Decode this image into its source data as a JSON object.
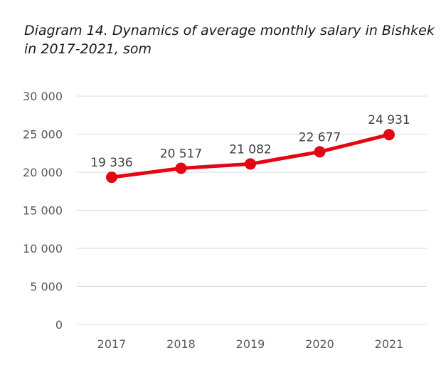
{
  "chart_data": {
    "type": "line",
    "title_line1": "Diagram 14. Dynamics of average monthly salary in Bishkek",
    "title_line2": "in 2017-2021, som",
    "categories": [
      "2017",
      "2018",
      "2019",
      "2020",
      "2021"
    ],
    "values": [
      19336,
      20517,
      21082,
      22677,
      24931
    ],
    "data_labels": [
      "19 336",
      "20 517",
      "21 082",
      "22 677",
      "24 931"
    ],
    "y_ticks": [
      0,
      5000,
      10000,
      15000,
      20000,
      25000,
      30000
    ],
    "y_tick_labels": [
      "0",
      "5 000",
      "10 000",
      "15 000",
      "20 000",
      "25 000",
      "30 000"
    ],
    "ylim": [
      0,
      30000
    ],
    "grid": true,
    "legend": "none",
    "line_color": "#e30613",
    "grid_color": "#d9d9d9"
  }
}
